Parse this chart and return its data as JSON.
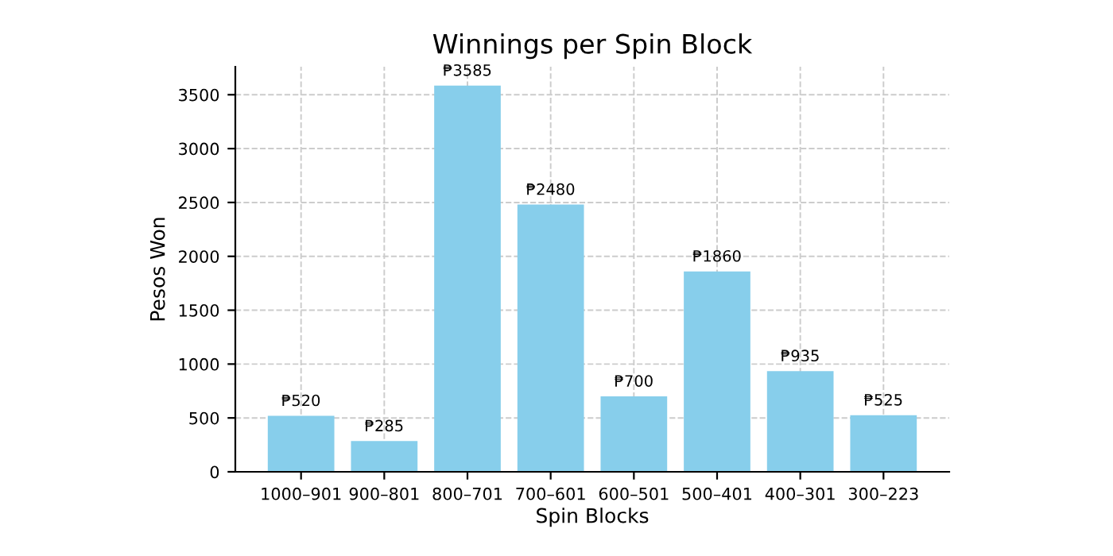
{
  "chart_data": {
    "type": "bar",
    "title": "Winnings per Spin Block",
    "xlabel": "Spin Blocks",
    "ylabel": "Pesos Won",
    "categories": [
      "1000–901",
      "900–801",
      "800–701",
      "700–601",
      "600–501",
      "500–401",
      "400–301",
      "300–223"
    ],
    "values": [
      520,
      285,
      3585,
      2480,
      700,
      1860,
      935,
      525
    ],
    "value_labels": [
      "₱520",
      "₱285",
      "₱3585",
      "₱2480",
      "₱700",
      "₱1860",
      "₱935",
      "₱525"
    ],
    "color": "#87ceeb",
    "ylim": [
      0,
      3760
    ],
    "yticks": [
      0,
      500,
      1000,
      1500,
      2000,
      2500,
      3000,
      3500
    ],
    "grid": true
  }
}
